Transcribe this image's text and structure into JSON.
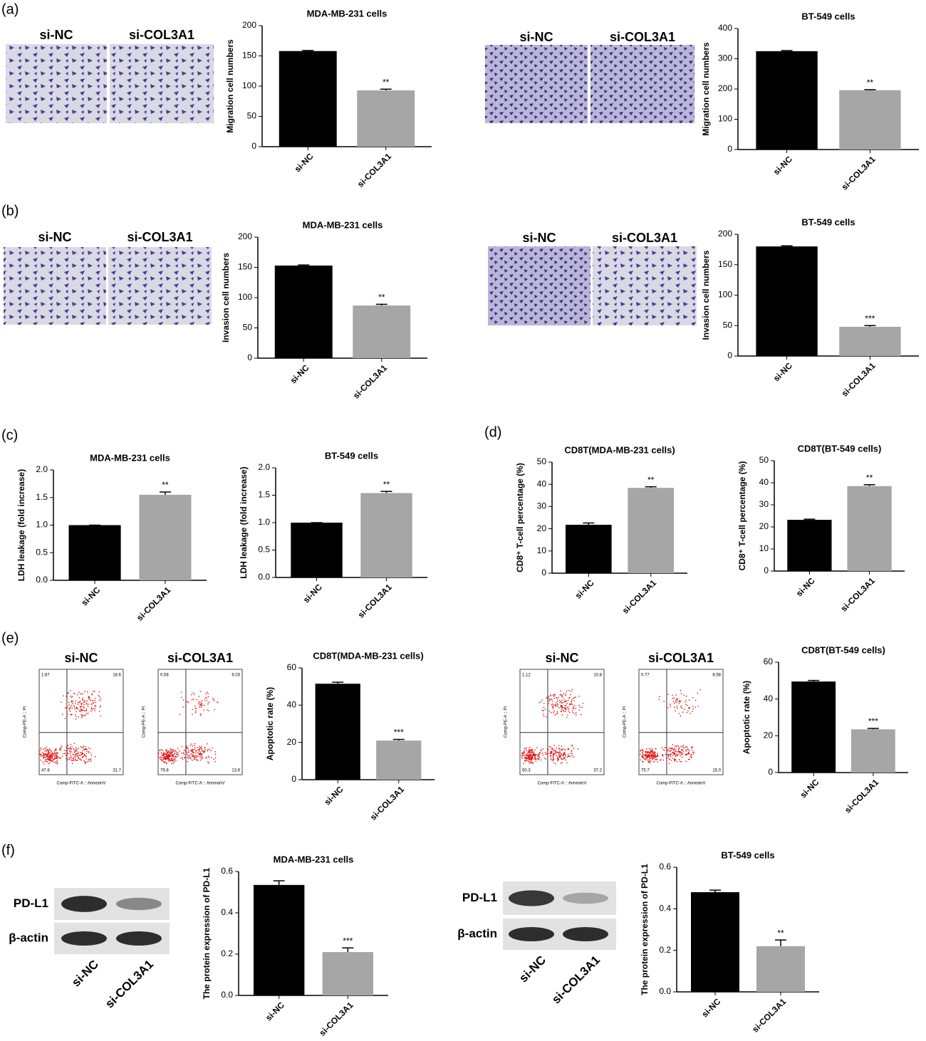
{
  "panel_labels": [
    "(a)",
    "(b)",
    "(c)",
    "(d)",
    "(e)",
    "(f)"
  ],
  "micrograph_labels": [
    [
      "si-NC",
      "si-COL3A1"
    ],
    [
      "si-NC",
      "si-COL3A1"
    ],
    [
      "si-NC",
      "si-COL3A1"
    ],
    [
      "si-NC",
      "si-COL3A1"
    ]
  ],
  "flow": {
    "x_label": "Comp-FITC-A :: AnnexinV",
    "y_label": "Comp-PE-A :: PI",
    "groups": [
      {
        "labels": [
          "si-NC",
          "si-COL3A1"
        ],
        "plots": [
          [
            "1.87",
            "18.6",
            "47.8",
            "31.7"
          ],
          [
            "0.58",
            "6.03",
            "79.8",
            "13.6"
          ]
        ]
      },
      {
        "labels": [
          "si-NC",
          "si-COL3A1"
        ],
        "plots": [
          [
            "1.12",
            "10.8",
            "50.3",
            "37.2"
          ],
          [
            "0.77",
            "8.58",
            "75.7",
            "15.0"
          ]
        ]
      }
    ]
  },
  "blots": [
    {
      "bands": [
        "PD-L1",
        "β-actin"
      ],
      "lanes": [
        "si-NC",
        "si-COL3A1"
      ]
    },
    {
      "bands": [
        "PD-L1",
        "β-actin"
      ],
      "lanes": [
        "si-NC",
        "si-COL3A1"
      ]
    }
  ],
  "chart_data": [
    {
      "type": "bar",
      "title": "MDA-MB-231 cells",
      "ylabel": "Migration cell numbers",
      "categories": [
        "si-NC",
        "si-COL3A1"
      ],
      "values": [
        158,
        93
      ],
      "errors": [
        1,
        2
      ],
      "significance": [
        null,
        "**"
      ],
      "colors": [
        "#000000",
        "#a6a6a6"
      ],
      "ylim": [
        0,
        200
      ],
      "yticks": [
        0,
        50,
        100,
        150,
        200
      ]
    },
    {
      "type": "bar",
      "title": "BT-549 cells",
      "ylabel": "Migration cell numbers",
      "categories": [
        "si-NC",
        "si-COL3A1"
      ],
      "values": [
        325,
        196
      ],
      "errors": [
        2,
        2
      ],
      "significance": [
        null,
        "**"
      ],
      "colors": [
        "#000000",
        "#a6a6a6"
      ],
      "ylim": [
        0,
        400
      ],
      "yticks": [
        0,
        100,
        200,
        300,
        400
      ]
    },
    {
      "type": "bar",
      "title": "MDA-MB-231 cells",
      "ylabel": "Invasion cell numbers",
      "categories": [
        "si-NC",
        "si-COL3A1"
      ],
      "values": [
        153,
        87
      ],
      "errors": [
        1,
        2
      ],
      "significance": [
        null,
        "**"
      ],
      "colors": [
        "#000000",
        "#a6a6a6"
      ],
      "ylim": [
        0,
        200
      ],
      "yticks": [
        0,
        50,
        100,
        150,
        200
      ]
    },
    {
      "type": "bar",
      "title": "BT-549 cells",
      "ylabel": "Invasion cell numbers",
      "categories": [
        "si-NC",
        "si-COL3A1"
      ],
      "values": [
        180,
        48
      ],
      "errors": [
        1,
        2
      ],
      "significance": [
        null,
        "***"
      ],
      "colors": [
        "#000000",
        "#a6a6a6"
      ],
      "ylim": [
        0,
        200
      ],
      "yticks": [
        0,
        50,
        100,
        150,
        200
      ]
    },
    {
      "type": "bar",
      "title": "MDA-MB-231 cells",
      "ylabel": "LDH leakage (fold increase)",
      "categories": [
        "si-NC",
        "si-COL3A1"
      ],
      "values": [
        1.0,
        1.55
      ],
      "errors": [
        0,
        0.05
      ],
      "significance": [
        null,
        "**"
      ],
      "colors": [
        "#000000",
        "#a6a6a6"
      ],
      "ylim": [
        0,
        2
      ],
      "yticks": [
        {
          "value": 0,
          "label": "0.0"
        },
        0.5,
        {
          "value": 1,
          "label": "1.0"
        },
        1.5,
        {
          "value": 2,
          "label": "2.0"
        }
      ]
    },
    {
      "type": "bar",
      "title": "BT-549 cells",
      "ylabel": "LDH leakage (fold increase)",
      "categories": [
        "si-NC",
        "si-COL3A1"
      ],
      "values": [
        1.0,
        1.54
      ],
      "errors": [
        0,
        0.03
      ],
      "significance": [
        null,
        "**"
      ],
      "colors": [
        "#000000",
        "#a6a6a6"
      ],
      "ylim": [
        0,
        2
      ],
      "yticks": [
        {
          "value": 0,
          "label": "0.0"
        },
        0.5,
        {
          "value": 1,
          "label": "1.0"
        },
        1.5,
        {
          "value": 2,
          "label": "2.0"
        }
      ]
    },
    {
      "type": "bar",
      "title": "CD8T(MDA-MB-231 cells)",
      "ylabel": "CD8⁺ T-cell percentage (%)",
      "categories": [
        "si-NC",
        "si-COL3A1"
      ],
      "values": [
        21.8,
        38.4
      ],
      "errors": [
        0.8,
        0.5
      ],
      "significance": [
        null,
        "**"
      ],
      "colors": [
        "#000000",
        "#a6a6a6"
      ],
      "ylim": [
        0,
        50
      ],
      "yticks": [
        0,
        10,
        20,
        30,
        40,
        50
      ]
    },
    {
      "type": "bar",
      "title": "CD8T(BT-549 cells)",
      "ylabel": "CD8⁺ T-cell percentage (%)",
      "categories": [
        "si-NC",
        "si-COL3A1"
      ],
      "values": [
        23.2,
        38.5
      ],
      "errors": [
        0.3,
        0.6
      ],
      "significance": [
        null,
        "**"
      ],
      "colors": [
        "#000000",
        "#a6a6a6"
      ],
      "ylim": [
        0,
        50
      ],
      "yticks": [
        0,
        10,
        20,
        30,
        40,
        50
      ]
    },
    {
      "type": "bar",
      "title": "CD8T(MDA-MB-231 cells)",
      "ylabel": "Apoptotic rate (%)",
      "categories": [
        "si-NC",
        "si-COL3A1"
      ],
      "values": [
        51.5,
        21
      ],
      "errors": [
        0.8,
        0.6
      ],
      "significance": [
        null,
        "***"
      ],
      "colors": [
        "#000000",
        "#a6a6a6"
      ],
      "ylim": [
        0,
        60
      ],
      "yticks": [
        0,
        20,
        40,
        60
      ]
    },
    {
      "type": "bar",
      "title": "CD8T(BT-549 cells)",
      "ylabel": "Apoptotic rate (%)",
      "categories": [
        "si-NC",
        "si-COL3A1"
      ],
      "values": [
        49.5,
        23.5
      ],
      "errors": [
        0.6,
        0.5
      ],
      "significance": [
        null,
        "***"
      ],
      "colors": [
        "#000000",
        "#a6a6a6"
      ],
      "ylim": [
        0,
        60
      ],
      "yticks": [
        0,
        20,
        40,
        60
      ]
    },
    {
      "type": "bar",
      "title": "MDA-MB-231 cells",
      "ylabel": "The protein expression of PD-L1",
      "categories": [
        "si-NC",
        "si-COL3A1"
      ],
      "values": [
        0.535,
        0.21
      ],
      "errors": [
        0.02,
        0.02
      ],
      "significance": [
        null,
        "***"
      ],
      "colors": [
        "#000000",
        "#a6a6a6"
      ],
      "ylim": [
        0,
        0.6
      ],
      "yticks": [
        {
          "value": 0,
          "label": "0.0"
        },
        0.2,
        0.4,
        0.6
      ]
    },
    {
      "type": "bar",
      "title": "BT-549 cells",
      "ylabel": "The protein expression of PD-L1",
      "categories": [
        "si-NC",
        "si-COL3A1"
      ],
      "values": [
        0.48,
        0.22
      ],
      "errors": [
        0.01,
        0.03
      ],
      "significance": [
        null,
        "**"
      ],
      "colors": [
        "#000000",
        "#a6a6a6"
      ],
      "ylim": [
        0,
        0.6
      ],
      "yticks": [
        {
          "value": 0,
          "label": "0.0"
        },
        0.2,
        0.4,
        0.6
      ]
    }
  ]
}
